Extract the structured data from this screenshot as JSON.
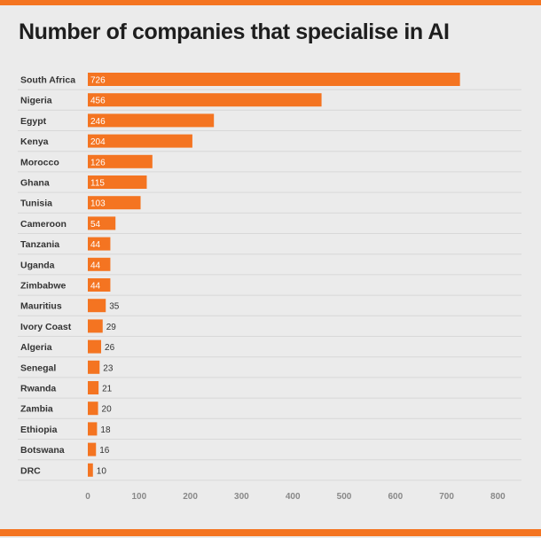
{
  "title": "Number of companies that specialise in AI",
  "colors": {
    "background": "#ebebeb",
    "accent": "#f47421",
    "bar": "#f47421",
    "label_text": "#333333",
    "inbar_text": "#ffffff",
    "tick_text": "#888888",
    "row_line": "#d8d8d8"
  },
  "chart_data": {
    "type": "bar",
    "orientation": "horizontal",
    "title": "Number of companies that specialise in AI",
    "xlabel": "",
    "ylabel": "",
    "xlim": [
      0,
      800
    ],
    "x_ticks": [
      0,
      100,
      200,
      300,
      400,
      500,
      600,
      700,
      800
    ],
    "grid": false,
    "categories": [
      "South Africa",
      "Nigeria",
      "Egypt",
      "Kenya",
      "Morocco",
      "Ghana",
      "Tunisia",
      "Cameroon",
      "Tanzania",
      "Uganda",
      "Zimbabwe",
      "Mauritius",
      "Ivory Coast",
      "Algeria",
      "Senegal",
      "Rwanda",
      "Zambia",
      "Ethiopia",
      "Botswana",
      "DRC"
    ],
    "values": [
      726,
      456,
      246,
      204,
      126,
      115,
      103,
      54,
      44,
      44,
      44,
      35,
      29,
      26,
      23,
      21,
      20,
      18,
      16,
      10
    ],
    "data_labels": true
  }
}
